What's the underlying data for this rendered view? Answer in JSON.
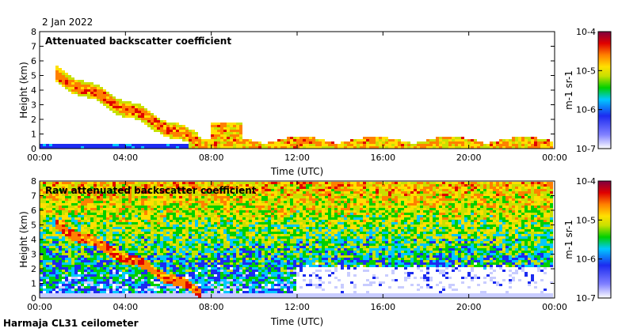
{
  "date_label": "2 Jan 2022",
  "footer": "Harmaja CL31 ceilometer",
  "colors": {
    "cmap": [
      "#ffffff",
      "#1c2bf0",
      "#00c8ff",
      "#00d000",
      "#c8e000",
      "#ffe000",
      "#ff8000",
      "#e00000",
      "#800040"
    ]
  },
  "chart_data": [
    {
      "type": "heatmap",
      "title": "Attenuated backscatter coefficient",
      "xlabel": "Time (UTC)",
      "ylabel": "Height (km)",
      "xlim": [
        0,
        24
      ],
      "ylim": [
        0,
        8
      ],
      "x_ticks": [
        "00:00",
        "04:00",
        "08:00",
        "12:00",
        "16:00",
        "20:00",
        "00:00"
      ],
      "y_ticks": [
        "0",
        "1",
        "2",
        "3",
        "4",
        "5",
        "6",
        "7",
        "8"
      ],
      "colorbar": {
        "scale": "log",
        "range": [
          1e-07,
          0.0001
        ],
        "ticks": [
          "10-7",
          "10-6",
          "10-5",
          "10-4"
        ],
        "label": "m-1 sr-1"
      },
      "features": {
        "decending_layer": {
          "t_start": 0.8,
          "t_end": 7.5,
          "h_start": 5.0,
          "h_end": 0.3
        },
        "boundary_layer_max_km": 1.0
      }
    },
    {
      "type": "heatmap",
      "title": "Raw attenuated backscatter coefficient",
      "xlabel": "Time (UTC)",
      "ylabel": "Height (km)",
      "xlim": [
        0,
        24
      ],
      "ylim": [
        0,
        8
      ],
      "x_ticks": [
        "00:00",
        "04:00",
        "08:00",
        "12:00",
        "16:00",
        "20:00",
        "00:00"
      ],
      "y_ticks": [
        "0",
        "1",
        "2",
        "3",
        "4",
        "5",
        "6",
        "7",
        "8"
      ],
      "colorbar": {
        "scale": "log",
        "range": [
          1e-07,
          0.0001
        ],
        "ticks": [
          "10-7",
          "10-6",
          "10-5",
          "10-4"
        ],
        "label": "m-1 sr-1"
      }
    }
  ]
}
